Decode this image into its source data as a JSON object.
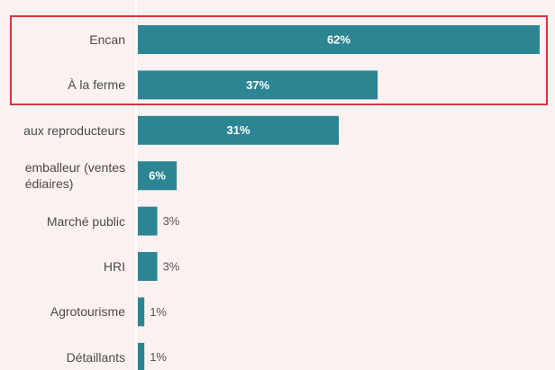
{
  "chart_data": {
    "type": "bar",
    "orientation": "horizontal",
    "categories": [
      "Encan",
      "À la ferme",
      "aux reproducteurs",
      "emballeur (ventes\nédiaires)",
      "Marché public",
      "HRI",
      "Agrotourisme",
      "Détaillants"
    ],
    "values": [
      62,
      37,
      31,
      6,
      3,
      3,
      1,
      1
    ],
    "value_labels": [
      "62%",
      "37%",
      "31%",
      "6%",
      "3%",
      "3%",
      "1%",
      "1%"
    ],
    "color": "#2b8593"
  }
}
